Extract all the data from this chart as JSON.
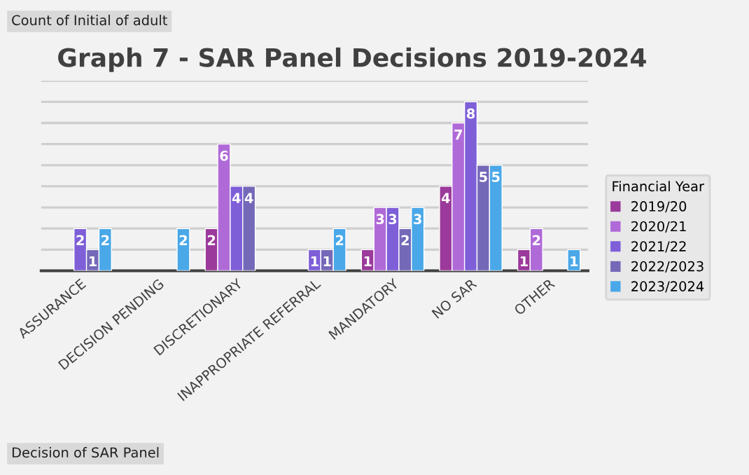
{
  "chart_data": {
    "type": "bar",
    "title": "Graph 7 - SAR Panel Decisions 2019-2024",
    "categories": [
      "ASSURANCE",
      "DECISION PENDING",
      "DISCRETIONARY",
      "INAPPROPRIATE REFERRAL",
      "MANDATORY",
      "NO SAR",
      "OTHER"
    ],
    "series": [
      {
        "name": "2019/20",
        "color": "#9b3a9b",
        "values": [
          null,
          null,
          2,
          null,
          1,
          4,
          1
        ]
      },
      {
        "name": "2020/21",
        "color": "#b06ad8",
        "values": [
          null,
          null,
          6,
          null,
          3,
          7,
          2
        ]
      },
      {
        "name": "2021/22",
        "color": "#7e5fd8",
        "values": [
          2,
          null,
          4,
          1,
          3,
          8,
          null
        ]
      },
      {
        "name": "2022/2023",
        "color": "#7468b8",
        "values": [
          1,
          null,
          4,
          1,
          2,
          5,
          null
        ]
      },
      {
        "name": "2023/2024",
        "color": "#4aa8e8",
        "values": [
          2,
          2,
          null,
          2,
          3,
          5,
          1
        ]
      }
    ],
    "legend_title": "Financial Year",
    "legend": "right",
    "ylim": [
      0,
      9
    ],
    "yticks": [
      {
        "value": 0,
        "label": null
      },
      {
        "value": 1,
        "label": null
      },
      {
        "value": 2,
        "label": null
      },
      {
        "value": 3,
        "label": null
      },
      {
        "value": 4,
        "label": null
      },
      {
        "value": 5,
        "label": null
      },
      {
        "value": 6,
        "label": null
      },
      {
        "value": 7,
        "label": null
      },
      {
        "value": 8,
        "label": null
      },
      {
        "value": 9,
        "label": null
      }
    ],
    "tick_labels": "x",
    "grid": "y",
    "data_labels": true,
    "annotations": [
      "Count of Initial of adult",
      "Decision of SAR Panel"
    ]
  }
}
